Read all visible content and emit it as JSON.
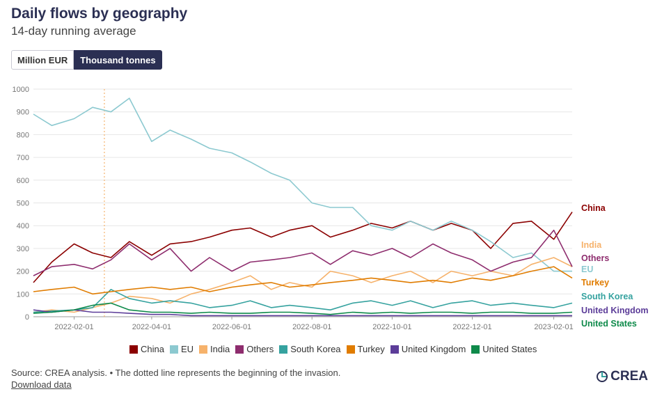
{
  "header": {
    "title": "Daily flows by geography",
    "subtitle": "14-day running average"
  },
  "toggle": {
    "options": [
      "Million EUR",
      "Thousand tonnes"
    ],
    "selected": "Thousand tonnes"
  },
  "footer": {
    "source": "Source: CREA analysis. • The dotted line represents the beginning of the invasion.",
    "download": "Download data"
  },
  "logo": {
    "text": "CREA",
    "icon": "crea-logo-icon"
  },
  "colors": {
    "China": "#8b0000",
    "EU": "#8cc9d0",
    "India": "#f6b26b",
    "Others": "#8e2d6e",
    "South Korea": "#35a29f",
    "Turkey": "#e07c00",
    "United Kingdom": "#5c3d99",
    "United States": "#0e8a4a",
    "invasion_line": "#f6b26b"
  },
  "chart_data": {
    "type": "line",
    "x": [
      "2022-01-01",
      "2022-01-15",
      "2022-02-01",
      "2022-02-15",
      "2022-03-01",
      "2022-03-15",
      "2022-04-01",
      "2022-04-15",
      "2022-05-01",
      "2022-05-15",
      "2022-06-01",
      "2022-06-15",
      "2022-07-01",
      "2022-07-15",
      "2022-08-01",
      "2022-08-15",
      "2022-09-01",
      "2022-09-15",
      "2022-10-01",
      "2022-10-15",
      "2022-11-01",
      "2022-11-15",
      "2022-12-01",
      "2022-12-15",
      "2023-01-01",
      "2023-01-15",
      "2023-02-01",
      "2023-02-15"
    ],
    "x_ticks": [
      "2022-02-01",
      "2022-04-01",
      "2022-06-01",
      "2022-08-01",
      "2022-10-01",
      "2022-12-01",
      "2023-02-01"
    ],
    "ylim": [
      0,
      1000
    ],
    "y_ticks": [
      0,
      100,
      200,
      300,
      400,
      500,
      600,
      700,
      800,
      900,
      1000
    ],
    "grid": true,
    "legend_position": "bottom",
    "invasion_date": "2022-02-24",
    "series": [
      {
        "name": "China",
        "values": [
          150,
          240,
          320,
          280,
          260,
          330,
          270,
          320,
          330,
          350,
          380,
          390,
          350,
          380,
          400,
          350,
          380,
          410,
          390,
          420,
          380,
          410,
          380,
          300,
          410,
          420,
          340,
          460
        ]
      },
      {
        "name": "EU",
        "values": [
          890,
          840,
          870,
          920,
          900,
          960,
          770,
          820,
          780,
          740,
          720,
          680,
          630,
          600,
          500,
          480,
          480,
          400,
          380,
          420,
          380,
          420,
          380,
          330,
          260,
          280,
          200,
          200
        ]
      },
      {
        "name": "India",
        "values": [
          20,
          30,
          20,
          40,
          60,
          90,
          80,
          60,
          100,
          120,
          150,
          180,
          120,
          150,
          130,
          200,
          180,
          150,
          180,
          200,
          150,
          200,
          180,
          200,
          180,
          230,
          260,
          220
        ]
      },
      {
        "name": "Others",
        "values": [
          180,
          220,
          230,
          210,
          250,
          320,
          250,
          300,
          200,
          260,
          200,
          240,
          250,
          260,
          280,
          230,
          290,
          270,
          300,
          260,
          320,
          280,
          250,
          200,
          240,
          260,
          380,
          220
        ]
      },
      {
        "name": "South Korea",
        "values": [
          20,
          25,
          30,
          40,
          120,
          80,
          60,
          70,
          60,
          40,
          50,
          70,
          40,
          50,
          40,
          30,
          60,
          70,
          50,
          70,
          40,
          60,
          70,
          50,
          60,
          50,
          40,
          60
        ]
      },
      {
        "name": "Turkey",
        "values": [
          110,
          120,
          130,
          100,
          110,
          120,
          130,
          120,
          130,
          110,
          130,
          140,
          150,
          130,
          140,
          150,
          160,
          170,
          160,
          150,
          160,
          150,
          170,
          160,
          180,
          200,
          220,
          170
        ]
      },
      {
        "name": "United Kingdom",
        "values": [
          30,
          20,
          30,
          20,
          20,
          15,
          10,
          10,
          5,
          5,
          5,
          5,
          5,
          5,
          5,
          5,
          5,
          5,
          5,
          5,
          5,
          5,
          5,
          5,
          5,
          5,
          5,
          5
        ]
      },
      {
        "name": "United States",
        "values": [
          15,
          20,
          30,
          50,
          60,
          30,
          20,
          20,
          15,
          20,
          15,
          15,
          20,
          20,
          15,
          10,
          20,
          15,
          20,
          15,
          20,
          20,
          15,
          20,
          20,
          15,
          15,
          20
        ]
      }
    ],
    "end_labels": [
      "China",
      "India",
      "Others",
      "EU",
      "Turkey",
      "South Korea",
      "United Kingdom",
      "United States"
    ]
  }
}
